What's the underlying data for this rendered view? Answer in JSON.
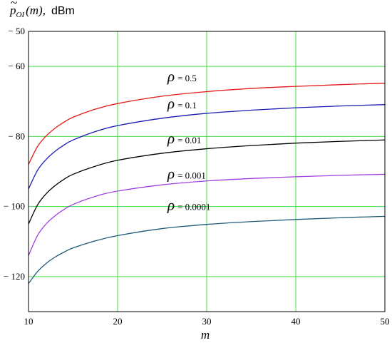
{
  "chart_data": {
    "type": "line",
    "title": "",
    "ylabel_symbol": "p",
    "ylabel_tilde": "~",
    "ylabel_subscript": "OI",
    "ylabel_arg": "(m),",
    "ylabel_unit": "dBm",
    "xlabel": "m",
    "xlim": [
      10,
      50
    ],
    "ylim": [
      -130,
      -50
    ],
    "x_ticks": [
      10,
      20,
      30,
      40,
      50
    ],
    "y_ticks": [
      -50,
      -60,
      -80,
      -100,
      -120
    ],
    "y_tick_labels": [
      "− 50",
      "− 60",
      "− 80",
      "− 100",
      "− 120"
    ],
    "grid": true,
    "grid_color": "#44dd44",
    "series": [
      {
        "name": "ρ = 0.5",
        "rho_value": "0.5",
        "color": "#e41a1a",
        "x": [
          10,
          11,
          12,
          13,
          14,
          15,
          17.5,
          20,
          25,
          30,
          35,
          40,
          45,
          50
        ],
        "y": [
          -88,
          -82.9,
          -79.8,
          -77.6,
          -75.9,
          -74.5,
          -72.2,
          -70.6,
          -68.5,
          -67.2,
          -66.3,
          -65.7,
          -65.2,
          -64.8
        ]
      },
      {
        "name": "ρ = 0.1",
        "rho_value": "0.1",
        "color": "#1a1ab4",
        "x": [
          10,
          11,
          12,
          13,
          14,
          15,
          17.5,
          20,
          25,
          30,
          35,
          40,
          45,
          50
        ],
        "y": [
          -95,
          -89.7,
          -86.5,
          -84.2,
          -82.4,
          -81.0,
          -78.6,
          -76.9,
          -74.8,
          -73.4,
          -72.5,
          -71.8,
          -71.3,
          -70.9
        ]
      },
      {
        "name": "ρ = 0.01",
        "rho_value": "0.01",
        "color": "#000000",
        "x": [
          10,
          11,
          12,
          13,
          14,
          15,
          17.5,
          20,
          25,
          30,
          35,
          40,
          45,
          50
        ],
        "y": [
          -105,
          -99.6,
          -96.3,
          -94.0,
          -92.2,
          -90.8,
          -88.5,
          -86.8,
          -84.8,
          -83.5,
          -82.6,
          -81.9,
          -81.4,
          -81.0
        ]
      },
      {
        "name": "ρ = 0.001",
        "rho_value": "0.001",
        "color": "#a040e0",
        "x": [
          10,
          11,
          12,
          13,
          14,
          15,
          17.5,
          20,
          25,
          30,
          35,
          40,
          45,
          50
        ],
        "y": [
          -114,
          -108.3,
          -104.9,
          -102.6,
          -100.8,
          -99.4,
          -97.1,
          -95.6,
          -93.8,
          -92.7,
          -92.0,
          -91.5,
          -91.1,
          -90.8
        ]
      },
      {
        "name": "ρ = 0.0001",
        "rho_value": "0.0001",
        "color": "#1f5a78",
        "x": [
          10,
          11,
          12,
          13,
          14,
          15,
          17.5,
          20,
          25,
          30,
          35,
          40,
          45,
          50
        ],
        "y": [
          -122,
          -118.6,
          -116.2,
          -114.4,
          -113.0,
          -111.8,
          -109.8,
          -108.3,
          -106.3,
          -105.1,
          -104.3,
          -103.7,
          -103.2,
          -102.8
        ]
      }
    ],
    "annotations": [
      {
        "rho": "ρ",
        "text": "= 0.5",
        "x": 25.6,
        "y": -64.2
      },
      {
        "rho": "ρ",
        "text": "= 0.1",
        "x": 25.6,
        "y": -72.0
      },
      {
        "rho": "ρ",
        "text": "= 0.01",
        "x": 25.6,
        "y": -82.0
      },
      {
        "rho": "ρ",
        "text": "= 0.001",
        "x": 25.6,
        "y": -92.0
      },
      {
        "rho": "ρ",
        "text": "= 0.0001",
        "x": 25.6,
        "y": -101.0
      }
    ]
  }
}
